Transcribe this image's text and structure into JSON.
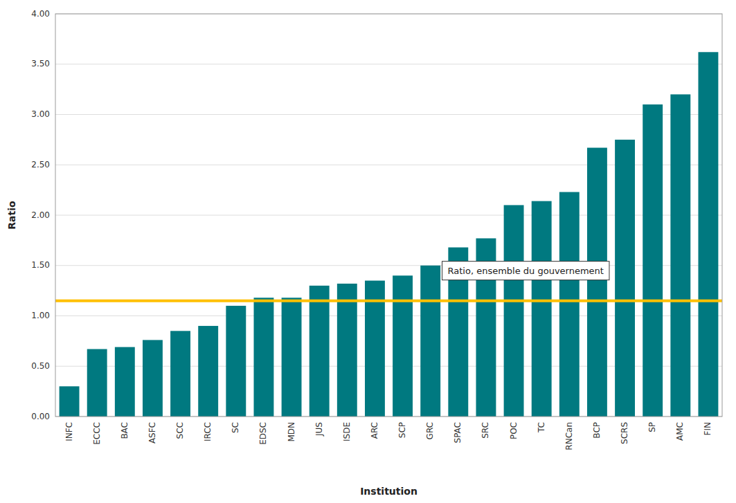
{
  "chart_data": {
    "type": "bar",
    "categories": [
      "INFC",
      "ECCC",
      "BAC",
      "ASFC",
      "SCC",
      "IRCC",
      "SC",
      "EDSC",
      "MDN",
      "JUS",
      "ISDE",
      "ARC",
      "SCP",
      "GRC",
      "SPAC",
      "SRC",
      "POC",
      "TC",
      "RNCan",
      "BCP",
      "SCRS",
      "SP",
      "AMC",
      "FIN"
    ],
    "values": [
      0.3,
      0.67,
      0.69,
      0.76,
      0.85,
      0.9,
      1.1,
      1.18,
      1.18,
      1.3,
      1.32,
      1.35,
      1.4,
      1.5,
      1.68,
      1.77,
      2.1,
      2.14,
      2.23,
      2.67,
      2.75,
      3.1,
      3.2,
      3.62
    ],
    "color": "#007980",
    "x_label": "Institution",
    "y_label": "Ratio",
    "ylim": [
      0.0,
      4.0
    ],
    "yticks": [
      {
        "value": 0.0,
        "label": "0.00"
      },
      {
        "value": 0.5,
        "label": "0.50"
      },
      {
        "value": 1.0,
        "label": "1.00"
      },
      {
        "value": 1.5,
        "label": "1.50"
      },
      {
        "value": 2.0,
        "label": "2.00"
      },
      {
        "value": 2.5,
        "label": "2.50"
      },
      {
        "value": 3.0,
        "label": "3.00"
      },
      {
        "value": 3.5,
        "label": "3.50"
      },
      {
        "value": 4.0,
        "label": "4.00"
      }
    ],
    "grid": true,
    "reference_line": {
      "value": 1.15,
      "label": "Ratio, ensemble du gouvernement",
      "color": "#FFC000"
    }
  }
}
